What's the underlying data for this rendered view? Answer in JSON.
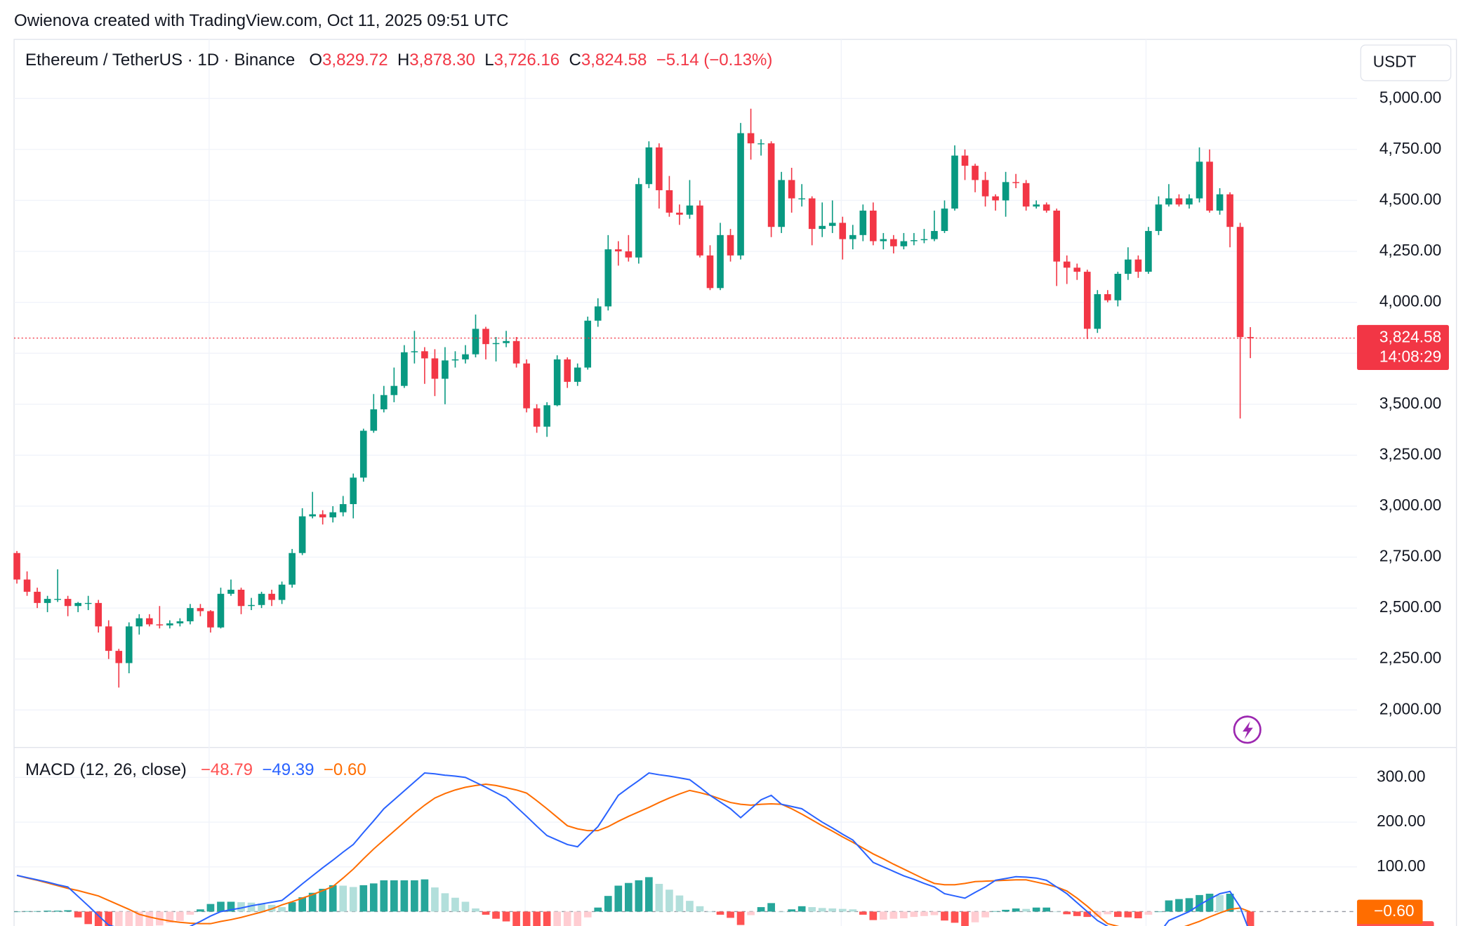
{
  "attribution": "Owienova created with TradingView.com, Oct 11, 2025 09:51 UTC",
  "chart_data": [
    {
      "type": "candlestick",
      "title": "Ethereum / TetherUS · 1D · Binance",
      "ohlc_labels": [
        {
          "key": "O",
          "value": "3,829.72"
        },
        {
          "key": "H",
          "value": "3,878.30"
        },
        {
          "key": "L",
          "value": "3,726.16"
        },
        {
          "key": "C",
          "value": "3,824.58"
        }
      ],
      "change": "−5.14 (−0.13%)",
      "axis_unit": "USDT",
      "last_price_label": "3,824.58",
      "countdown": "14:08:29",
      "up_color": "#089981",
      "down_color": "#f23645",
      "ylim": [
        1816,
        5290
      ],
      "yticks": [
        {
          "value": 2000,
          "label": "2,000.00"
        },
        {
          "value": 2250,
          "label": "2,250.00"
        },
        {
          "value": 2500,
          "label": "2,500.00"
        },
        {
          "value": 2750,
          "label": "2,750.00"
        },
        {
          "value": 3000,
          "label": "3,000.00"
        },
        {
          "value": 3250,
          "label": "3,250.00"
        },
        {
          "value": 3500,
          "label": "3,500.00"
        },
        {
          "value": 3750,
          "label": "3,750.00"
        },
        {
          "value": 4000,
          "label": "4,000.00"
        },
        {
          "value": 4250,
          "label": "4,250.00"
        },
        {
          "value": 4500,
          "label": "4,500.00"
        },
        {
          "value": 4750,
          "label": "4,750.00"
        },
        {
          "value": 5000,
          "label": "5,000.00"
        }
      ],
      "ohlc": [
        [
          2770,
          2780,
          2620,
          2640
        ],
        [
          2640,
          2680,
          2560,
          2580
        ],
        [
          2580,
          2600,
          2500,
          2525
        ],
        [
          2525,
          2560,
          2480,
          2545
        ],
        [
          2545,
          2690,
          2530,
          2545
        ],
        [
          2545,
          2560,
          2460,
          2510
        ],
        [
          2510,
          2530,
          2480,
          2525
        ],
        [
          2525,
          2560,
          2490,
          2525
        ],
        [
          2525,
          2540,
          2380,
          2410
        ],
        [
          2410,
          2440,
          2250,
          2290
        ],
        [
          2290,
          2300,
          2110,
          2230
        ],
        [
          2230,
          2430,
          2180,
          2410
        ],
        [
          2410,
          2470,
          2370,
          2450
        ],
        [
          2450,
          2470,
          2410,
          2420
        ],
        [
          2420,
          2510,
          2400,
          2415
        ],
        [
          2415,
          2440,
          2400,
          2425
        ],
        [
          2425,
          2450,
          2410,
          2435
        ],
        [
          2435,
          2520,
          2420,
          2500
        ],
        [
          2500,
          2520,
          2460,
          2485
        ],
        [
          2485,
          2490,
          2380,
          2405
        ],
        [
          2405,
          2600,
          2400,
          2570
        ],
        [
          2570,
          2640,
          2560,
          2590
        ],
        [
          2590,
          2600,
          2470,
          2510
        ],
        [
          2510,
          2550,
          2490,
          2515
        ],
        [
          2515,
          2580,
          2500,
          2570
        ],
        [
          2570,
          2590,
          2510,
          2540
        ],
        [
          2540,
          2630,
          2520,
          2615
        ],
        [
          2615,
          2790,
          2600,
          2770
        ],
        [
          2770,
          2990,
          2760,
          2950
        ],
        [
          2950,
          3070,
          2940,
          2960
        ],
        [
          2960,
          2980,
          2910,
          2945
        ],
        [
          2945,
          3000,
          2920,
          2970
        ],
        [
          2970,
          3050,
          2950,
          3010
        ],
        [
          3010,
          3160,
          2940,
          3140
        ],
        [
          3140,
          3380,
          3120,
          3370
        ],
        [
          3370,
          3550,
          3360,
          3475
        ],
        [
          3475,
          3590,
          3460,
          3545
        ],
        [
          3545,
          3680,
          3510,
          3590
        ],
        [
          3590,
          3790,
          3580,
          3755
        ],
        [
          3755,
          3860,
          3700,
          3760
        ],
        [
          3760,
          3780,
          3600,
          3725
        ],
        [
          3725,
          3770,
          3540,
          3625
        ],
        [
          3625,
          3780,
          3500,
          3715
        ],
        [
          3715,
          3760,
          3680,
          3720
        ],
        [
          3720,
          3790,
          3700,
          3745
        ],
        [
          3745,
          3940,
          3730,
          3870
        ],
        [
          3870,
          3880,
          3720,
          3795
        ],
        [
          3795,
          3830,
          3710,
          3800
        ],
        [
          3800,
          3860,
          3780,
          3810
        ],
        [
          3810,
          3830,
          3680,
          3700
        ],
        [
          3700,
          3720,
          3460,
          3480
        ],
        [
          3480,
          3500,
          3360,
          3390
        ],
        [
          3390,
          3510,
          3340,
          3495
        ],
        [
          3495,
          3740,
          3490,
          3720
        ],
        [
          3720,
          3730,
          3580,
          3610
        ],
        [
          3610,
          3700,
          3590,
          3680
        ],
        [
          3680,
          3930,
          3670,
          3910
        ],
        [
          3910,
          4020,
          3880,
          3980
        ],
        [
          3980,
          4330,
          3960,
          4260
        ],
        [
          4260,
          4300,
          4180,
          4250
        ],
        [
          4250,
          4330,
          4200,
          4220
        ],
        [
          4220,
          4610,
          4190,
          4580
        ],
        [
          4580,
          4790,
          4560,
          4760
        ],
        [
          4760,
          4780,
          4460,
          4550
        ],
        [
          4550,
          4620,
          4420,
          4440
        ],
        [
          4440,
          4480,
          4380,
          4430
        ],
        [
          4430,
          4600,
          4410,
          4475
        ],
        [
          4475,
          4500,
          4220,
          4230
        ],
        [
          4230,
          4280,
          4060,
          4070
        ],
        [
          4070,
          4390,
          4060,
          4330
        ],
        [
          4330,
          4360,
          4200,
          4230
        ],
        [
          4230,
          4880,
          4210,
          4830
        ],
        [
          4830,
          4950,
          4700,
          4780
        ],
        [
          4780,
          4800,
          4720,
          4780
        ],
        [
          4780,
          4790,
          4320,
          4370
        ],
        [
          4370,
          4640,
          4340,
          4600
        ],
        [
          4600,
          4660,
          4440,
          4510
        ],
        [
          4510,
          4580,
          4470,
          4510
        ],
        [
          4510,
          4520,
          4280,
          4360
        ],
        [
          4360,
          4490,
          4320,
          4375
        ],
        [
          4375,
          4500,
          4340,
          4390
        ],
        [
          4390,
          4420,
          4210,
          4310
        ],
        [
          4310,
          4380,
          4260,
          4330
        ],
        [
          4330,
          4480,
          4300,
          4450
        ],
        [
          4450,
          4490,
          4280,
          4300
        ],
        [
          4300,
          4340,
          4260,
          4310
        ],
        [
          4310,
          4330,
          4240,
          4275
        ],
        [
          4275,
          4340,
          4260,
          4300
        ],
        [
          4300,
          4340,
          4280,
          4305
        ],
        [
          4305,
          4360,
          4290,
          4310
        ],
        [
          4310,
          4450,
          4300,
          4350
        ],
        [
          4350,
          4500,
          4340,
          4460
        ],
        [
          4460,
          4770,
          4450,
          4720
        ],
        [
          4720,
          4750,
          4600,
          4670
        ],
        [
          4670,
          4680,
          4540,
          4600
        ],
        [
          4600,
          4640,
          4470,
          4520
        ],
        [
          4520,
          4530,
          4450,
          4500
        ],
        [
          4500,
          4640,
          4420,
          4590
        ],
        [
          4590,
          4630,
          4560,
          4585
        ],
        [
          4585,
          4600,
          4450,
          4470
        ],
        [
          4470,
          4500,
          4460,
          4480
        ],
        [
          4480,
          4490,
          4440,
          4450
        ],
        [
          4450,
          4460,
          4080,
          4200
        ],
        [
          4200,
          4230,
          4090,
          4170
        ],
        [
          4170,
          4190,
          4110,
          4150
        ],
        [
          4150,
          4160,
          3820,
          3870
        ],
        [
          3870,
          4060,
          3850,
          4040
        ],
        [
          4040,
          4060,
          4000,
          4010
        ],
        [
          4010,
          4150,
          3980,
          4140
        ],
        [
          4140,
          4270,
          4110,
          4210
        ],
        [
          4210,
          4230,
          4120,
          4150
        ],
        [
          4150,
          4370,
          4140,
          4350
        ],
        [
          4350,
          4520,
          4330,
          4480
        ],
        [
          4480,
          4580,
          4470,
          4510
        ],
        [
          4510,
          4530,
          4470,
          4480
        ],
        [
          4480,
          4530,
          4460,
          4510
        ],
        [
          4510,
          4760,
          4490,
          4690
        ],
        [
          4690,
          4750,
          4440,
          4450
        ],
        [
          4450,
          4560,
          4430,
          4530
        ],
        [
          4530,
          4540,
          4270,
          4370
        ],
        [
          4370,
          4390,
          3430,
          3829.72
        ],
        [
          3829.72,
          3878.3,
          3726.16,
          3824.58
        ]
      ]
    },
    {
      "type": "macd",
      "title": "MACD (12, 26, close)",
      "legend": [
        "−48.79",
        "−49.39",
        "−0.60"
      ],
      "ylim": [
        -42,
        367
      ],
      "yticks": [
        {
          "value": 100,
          "label": "100.00"
        },
        {
          "value": 200,
          "label": "200.00"
        },
        {
          "value": 300,
          "label": "300.00"
        }
      ],
      "histogram": {
        "colors": {
          "grow_above": "#26a69a",
          "fall_above": "#b2dfdb",
          "grow_below": "#ffcdd2",
          "fall_below": "#ff5252"
        },
        "values": [
          0,
          1,
          1,
          2,
          2,
          3,
          -13,
          -28,
          -44,
          -55,
          -52,
          -49,
          -44,
          -37,
          -31,
          -25,
          -21,
          -7,
          5,
          17,
          22,
          22,
          21,
          20,
          18,
          15,
          10,
          21,
          32,
          42,
          51,
          59,
          58,
          55,
          59,
          63,
          70,
          70,
          70,
          70,
          72,
          54,
          41,
          31,
          22,
          7,
          -7,
          -16,
          -22,
          -38,
          -52,
          -57,
          -60,
          -51,
          -42,
          -40,
          -13,
          9,
          35,
          58,
          64,
          70,
          77,
          62,
          49,
          36,
          24,
          12,
          0,
          -7,
          -14,
          -30,
          -8,
          10,
          19,
          0,
          5,
          12,
          10,
          8,
          7,
          6,
          5,
          -7,
          -19,
          -18,
          -16,
          -15,
          -12,
          -10,
          -8,
          -20,
          -25,
          -33,
          -24,
          -13,
          1,
          4,
          7,
          6,
          9,
          9,
          0,
          -6,
          -10,
          -12,
          -12,
          -6,
          -12,
          -13,
          -15,
          -7,
          0,
          25,
          28,
          30,
          37,
          40,
          37,
          40,
          2,
          -48.79
        ]
      },
      "macd": {
        "color": "#2962ff",
        "values": [
          81,
          76,
          71,
          66,
          60,
          55,
          34,
          13,
          -9,
          -30,
          -37,
          -44,
          -50,
          -49,
          -48,
          -46,
          -45,
          -33,
          -22,
          -10,
          0,
          4,
          8,
          13,
          17,
          21,
          25,
          43,
          62,
          80,
          98,
          115,
          133,
          150,
          177,
          203,
          230,
          250,
          270,
          290,
          310,
          308,
          305,
          303,
          300,
          289,
          278,
          266,
          255,
          234,
          213,
          191,
          170,
          160,
          150,
          145,
          168,
          190,
          225,
          260,
          277,
          293,
          310,
          306,
          303,
          299,
          295,
          278,
          260,
          245,
          230,
          210,
          230,
          250,
          260,
          240,
          235,
          230,
          215,
          200,
          187,
          173,
          160,
          135,
          110,
          100,
          90,
          80,
          72,
          63,
          55,
          40,
          35,
          30,
          43,
          55,
          70,
          74,
          78,
          77,
          75,
          70,
          55,
          40,
          20,
          0,
          -20,
          -33,
          -45,
          -53,
          -60,
          -55,
          -50,
          -20,
          -10,
          0,
          15,
          28,
          40,
          45,
          10,
          -49.39
        ]
      },
      "signal": {
        "color": "#ff6d00",
        "values": [
          81,
          75,
          70,
          64,
          58,
          52,
          47,
          41,
          35,
          25,
          15,
          5,
          -6,
          -12,
          -17,
          -21,
          -24,
          -26,
          -27,
          -27,
          -22,
          -18,
          -13,
          -7,
          -1,
          6,
          15,
          22,
          30,
          38,
          47,
          56,
          75,
          95,
          118,
          140,
          160,
          180,
          200,
          220,
          238,
          254,
          264,
          272,
          278,
          282,
          285,
          282,
          277,
          272,
          265,
          248,
          230,
          211,
          192,
          185,
          181,
          181,
          190,
          202,
          213,
          223,
          233,
          244,
          254,
          263,
          271,
          266,
          260,
          252,
          244,
          240,
          238,
          240,
          241,
          240,
          230,
          218,
          205,
          192,
          180,
          167,
          155,
          142,
          129,
          118,
          106,
          95,
          84,
          73,
          63,
          60,
          60,
          63,
          67,
          68,
          69,
          70,
          71,
          71,
          66,
          61,
          55,
          46,
          30,
          12,
          -8,
          -27,
          -33,
          -40,
          -45,
          -48,
          -50,
          -45,
          -38,
          -30,
          -22,
          -12,
          -3,
          5,
          8,
          -0.6
        ]
      }
    }
  ]
}
